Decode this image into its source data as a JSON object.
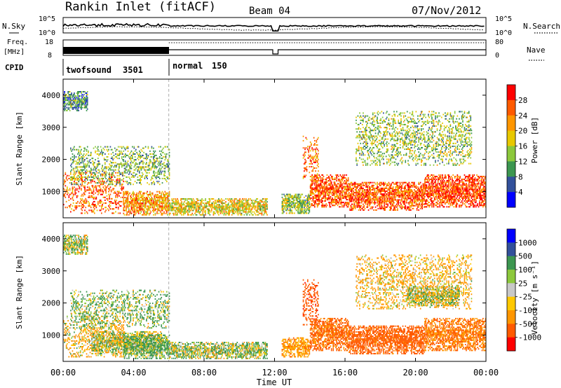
{
  "header": {
    "station": "Rankin Inlet (fitACF)",
    "beam": "Beam 04",
    "date": "07/Nov/2012"
  },
  "status_panel": {
    "nsky_label": "N.Sky",
    "nsearch_label": "N.Search",
    "freq_label_1": "Freq.",
    "freq_label_2": "[MHz]",
    "nave_label": "Nave",
    "cpid_label": "CPID",
    "nsky_ticks": [
      "10^5",
      "10^0"
    ],
    "nsearch_ticks": [
      "10^5",
      "10^0"
    ],
    "freq_ticks": [
      "18",
      "8"
    ],
    "nave_ticks": [
      "80",
      "0"
    ],
    "cpid_modes": [
      {
        "name": "twofsound",
        "id": "3501",
        "start_hour": 0,
        "end_hour": 6
      },
      {
        "name": "normal",
        "id": "150",
        "start_hour": 6,
        "end_hour": 24
      }
    ]
  },
  "x_axis": {
    "label": "Time UT",
    "ticks": [
      "00:00",
      "04:00",
      "08:00",
      "12:00",
      "16:00",
      "20:00",
      "00:00"
    ],
    "range_hours": [
      0,
      24
    ]
  },
  "chart_data": [
    {
      "type": "heatmap",
      "name": "power",
      "ylabel": "Slant Range [km]",
      "ylim": [
        180,
        4500
      ],
      "yticks": [
        "1000",
        "2000",
        "3000",
        "4000"
      ],
      "colorbar": {
        "label": "Power [dB]",
        "tick_labels": [
          "28",
          "24",
          "20",
          "16",
          "12",
          "8",
          "4"
        ],
        "colors": [
          "#ff0000",
          "#ff5a00",
          "#ff9600",
          "#e8c800",
          "#8cc83c",
          "#3c9650",
          "#32509b",
          "#0000ff"
        ]
      },
      "blobs": [
        {
          "t0": 0.0,
          "t1": 3.4,
          "r0": 300,
          "r1": 1600,
          "v": 25
        },
        {
          "t0": 3.4,
          "t1": 6.0,
          "r0": 250,
          "r1": 1000,
          "v": 22
        },
        {
          "t0": 6.0,
          "t1": 11.6,
          "r0": 250,
          "r1": 750,
          "v": 18
        },
        {
          "t0": 12.4,
          "t1": 14.0,
          "r0": 300,
          "r1": 900,
          "v": 14
        },
        {
          "t0": 14.0,
          "t1": 16.2,
          "r0": 500,
          "r1": 1500,
          "v": 26
        },
        {
          "t0": 16.2,
          "t1": 20.5,
          "r0": 400,
          "r1": 1300,
          "v": 26
        },
        {
          "t0": 20.5,
          "t1": 24.0,
          "r0": 500,
          "r1": 1500,
          "v": 27
        },
        {
          "t0": 0.4,
          "t1": 6.0,
          "r0": 1200,
          "r1": 2400,
          "v": 13
        },
        {
          "t0": 13.6,
          "t1": 14.5,
          "r0": 1300,
          "r1": 2700,
          "v": 24
        },
        {
          "t0": 16.6,
          "t1": 23.2,
          "r0": 1800,
          "r1": 3500,
          "v": 14
        },
        {
          "t0": 0.0,
          "t1": 1.4,
          "r0": 3500,
          "r1": 4100,
          "v": 10
        }
      ]
    },
    {
      "type": "heatmap",
      "name": "velocity",
      "ylabel": "Slant Range [km]",
      "ylim": [
        180,
        4500
      ],
      "yticks": [
        "1000",
        "2000",
        "3000",
        "4000"
      ],
      "colorbar": {
        "label": "Velocity [m s⁻¹]",
        "tick_labels": [
          "1000",
          "500",
          "100",
          "25",
          "-25",
          "-100",
          "-500",
          "-1000"
        ],
        "colors": [
          "#0000ff",
          "#32509b",
          "#3c9650",
          "#8cc83c",
          "#c8c8c8",
          "#ffc800",
          "#ff9600",
          "#ff5a00",
          "#ff0000"
        ]
      },
      "blobs": [
        {
          "t0": 0.0,
          "t1": 3.4,
          "r0": 300,
          "r1": 1600,
          "v": -120
        },
        {
          "t0": 1.6,
          "t1": 5.6,
          "r0": 400,
          "r1": 1100,
          "v": 0
        },
        {
          "t0": 3.4,
          "t1": 6.0,
          "r0": 250,
          "r1": 1000,
          "v": 150
        },
        {
          "t0": 6.0,
          "t1": 11.6,
          "r0": 250,
          "r1": 750,
          "v": 60
        },
        {
          "t0": 12.4,
          "t1": 14.0,
          "r0": 300,
          "r1": 900,
          "v": -300
        },
        {
          "t0": 14.0,
          "t1": 16.2,
          "r0": 500,
          "r1": 1500,
          "v": -600
        },
        {
          "t0": 16.2,
          "t1": 20.5,
          "r0": 400,
          "r1": 1300,
          "v": -700
        },
        {
          "t0": 20.5,
          "t1": 24.0,
          "r0": 500,
          "r1": 1500,
          "v": -500
        },
        {
          "t0": 0.4,
          "t1": 6.0,
          "r0": 1200,
          "r1": 2400,
          "v": 120
        },
        {
          "t0": 13.6,
          "t1": 14.5,
          "r0": 1300,
          "r1": 2700,
          "v": -800
        },
        {
          "t0": 16.6,
          "t1": 23.2,
          "r0": 1800,
          "r1": 3500,
          "v": -150
        },
        {
          "t0": 19.5,
          "t1": 22.5,
          "r0": 1900,
          "r1": 2500,
          "v": 0
        },
        {
          "t0": 0.0,
          "t1": 1.4,
          "r0": 3500,
          "r1": 4100,
          "v": 60
        }
      ]
    }
  ]
}
